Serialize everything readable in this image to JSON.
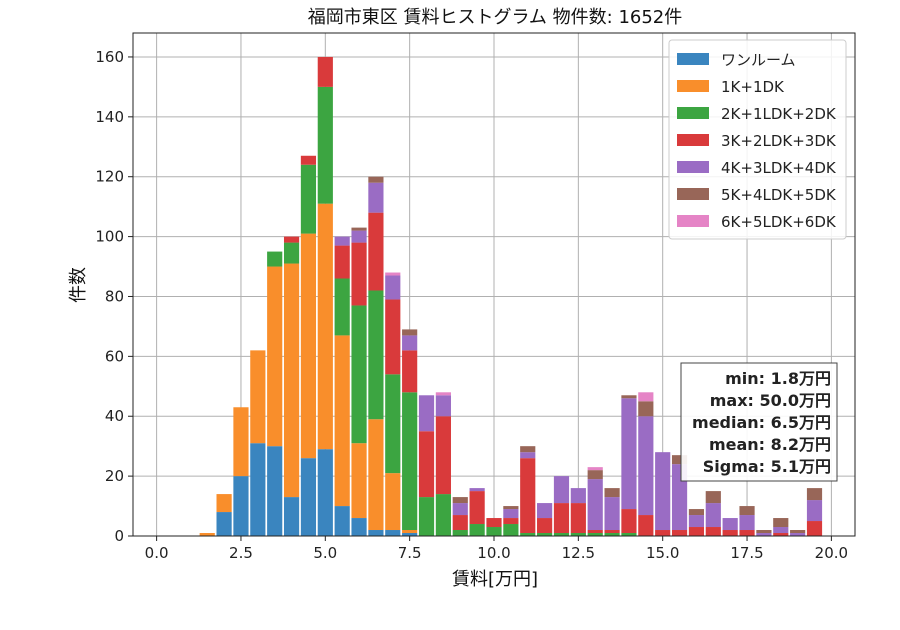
{
  "chart_data": {
    "type": "bar",
    "stacked": true,
    "title": "福岡市東区 賃料ヒストグラム  物件数: 1652件",
    "xlabel": "賃料[万円]",
    "ylabel": "件数",
    "xlim": [
      -0.7,
      20.7
    ],
    "ylim": [
      0,
      168
    ],
    "xticks": [
      0.0,
      2.5,
      5.0,
      7.5,
      10.0,
      12.5,
      15.0,
      17.5,
      20.0
    ],
    "xtick_labels": [
      "0.0",
      "2.5",
      "5.0",
      "7.5",
      "10.0",
      "12.5",
      "15.0",
      "17.5",
      "20.0"
    ],
    "yticks": [
      0,
      20,
      40,
      60,
      80,
      100,
      120,
      140,
      160
    ],
    "ytick_labels": [
      "0",
      "20",
      "40",
      "60",
      "80",
      "100",
      "120",
      "140",
      "160"
    ],
    "grid": true,
    "legend_position": "top-right",
    "bin_width": 0.5,
    "x": [
      0.0,
      0.5,
      1.0,
      1.5,
      2.0,
      2.5,
      3.0,
      3.5,
      4.0,
      4.5,
      5.0,
      5.5,
      6.0,
      6.5,
      7.0,
      7.5,
      8.0,
      8.5,
      9.0,
      9.5,
      10.0,
      10.5,
      11.0,
      11.5,
      12.0,
      12.5,
      13.0,
      13.5,
      14.0,
      14.5,
      15.0,
      15.5,
      16.0,
      16.5,
      17.0,
      17.5,
      18.0,
      18.5,
      19.0,
      19.5
    ],
    "series": [
      {
        "name": "ワンルーム",
        "color": "#3a85bf",
        "values": [
          0,
          0,
          0,
          0,
          8,
          20,
          31,
          30,
          13,
          26,
          29,
          10,
          6,
          2,
          2,
          1,
          0,
          0,
          0,
          0,
          0,
          0,
          0,
          0,
          0,
          0,
          0,
          0,
          0,
          0,
          0,
          0,
          0,
          0,
          0,
          0,
          0,
          0,
          0,
          0
        ]
      },
      {
        "name": "1K+1DK",
        "color": "#f98e2b",
        "values": [
          0,
          0,
          0,
          1,
          6,
          23,
          31,
          60,
          78,
          75,
          82,
          57,
          25,
          37,
          19,
          1,
          0,
          0,
          0,
          0,
          0,
          0,
          0,
          0,
          0,
          0,
          0,
          0,
          0,
          0,
          0,
          0,
          0,
          0,
          0,
          0,
          0,
          0,
          0,
          0
        ]
      },
      {
        "name": "2K+1LDK+2DK",
        "color": "#3ca541",
        "values": [
          0,
          0,
          0,
          0,
          0,
          0,
          0,
          5,
          7,
          23,
          39,
          19,
          46,
          43,
          33,
          46,
          13,
          14,
          2,
          4,
          3,
          4,
          1,
          1,
          1,
          1,
          1,
          1,
          1,
          0,
          0,
          0,
          0,
          0,
          0,
          0,
          0,
          0,
          0,
          0
        ]
      },
      {
        "name": "3K+2LDK+3DK",
        "color": "#d93a3b",
        "values": [
          0,
          0,
          0,
          0,
          0,
          0,
          0,
          0,
          2,
          3,
          10,
          11,
          21,
          26,
          25,
          14,
          22,
          26,
          5,
          11,
          3,
          2,
          25,
          5,
          10,
          10,
          1,
          1,
          8,
          7,
          2,
          2,
          3,
          3,
          2,
          2,
          0,
          1,
          0,
          5
        ]
      },
      {
        "name": "4K+3LDK+4DK",
        "color": "#9a6cc4",
        "values": [
          0,
          0,
          0,
          0,
          0,
          0,
          0,
          0,
          0,
          0,
          0,
          3,
          4,
          10,
          8,
          5,
          12,
          7,
          4,
          1,
          0,
          3,
          2,
          5,
          9,
          5,
          17,
          11,
          37,
          33,
          26,
          22,
          4,
          8,
          4,
          5,
          1,
          2,
          1,
          7
        ]
      },
      {
        "name": "5K+4LDK+5DK",
        "color": "#986658",
        "values": [
          0,
          0,
          0,
          0,
          0,
          0,
          0,
          0,
          0,
          0,
          0,
          0,
          1,
          2,
          0,
          2,
          0,
          0,
          2,
          0,
          0,
          1,
          2,
          0,
          0,
          0,
          3,
          3,
          1,
          5,
          0,
          3,
          2,
          4,
          0,
          3,
          1,
          3,
          1,
          4
        ]
      },
      {
        "name": "6K+5LDK+6DK",
        "color": "#e584c6",
        "values": [
          0,
          0,
          0,
          0,
          0,
          0,
          0,
          0,
          0,
          0,
          0,
          0,
          0,
          0,
          1,
          0,
          0,
          1,
          0,
          0,
          0,
          0,
          0,
          0,
          0,
          0,
          1,
          0,
          0,
          3,
          0,
          0,
          0,
          0,
          0,
          0,
          0,
          0,
          0,
          0
        ]
      }
    ],
    "stats": [
      "min: 1.8万円",
      "max: 50.0万円",
      "median: 6.5万円",
      "mean: 8.2万円",
      "Sigma: 5.1万円"
    ]
  }
}
